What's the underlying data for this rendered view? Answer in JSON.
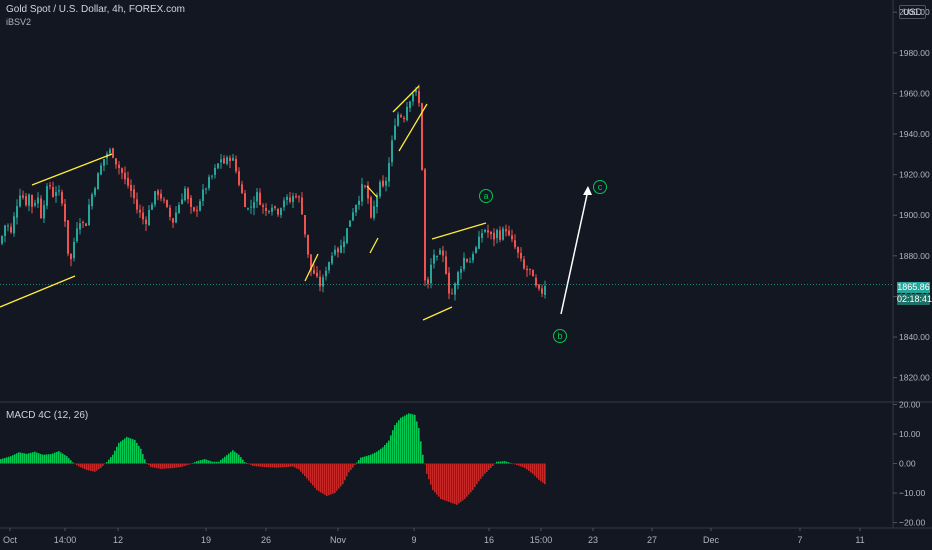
{
  "header": {
    "title": "Gold Spot / U.S. Dollar, 4h, FOREX.com",
    "indicator": "iBSV2",
    "currency": "USD"
  },
  "price_tags": {
    "last": "1865.86",
    "timer": "02:18:41"
  },
  "wave_labels": [
    "a",
    "b",
    "c"
  ],
  "colors": {
    "background": "#131722",
    "up": "#26a69a",
    "down": "#ef5350",
    "annotation": "#ffeb3b",
    "wave": "#00c853",
    "hist_pos": "#00c853",
    "hist_neg": "#c62828"
  },
  "chart_data": [
    {
      "type": "candlestick",
      "title": "Gold Spot / U.S. Dollar, 4h, FOREX.com",
      "currency": "USD",
      "x_ticks": [
        "Oct",
        "14:00",
        "12",
        "19",
        "26",
        "Nov",
        "9",
        "16",
        "15:00",
        "23",
        "27",
        "Dec",
        "7",
        "11"
      ],
      "y_ticks": [
        1820,
        1840,
        1860,
        1880,
        1900,
        1920,
        1940,
        1960,
        1980,
        2000
      ],
      "ylim": [
        1808,
        2006
      ],
      "last_price": 1865.86,
      "close_path": [
        [
          0,
          1888
        ],
        [
          5,
          1897
        ],
        [
          10,
          1891
        ],
        [
          15,
          1904
        ],
        [
          20,
          1913
        ],
        [
          24,
          1905
        ],
        [
          28,
          1910
        ],
        [
          32,
          1903
        ],
        [
          36,
          1911
        ],
        [
          40,
          1900
        ],
        [
          44,
          1909
        ],
        [
          48,
          1916
        ],
        [
          52,
          1910
        ],
        [
          56,
          1913
        ],
        [
          60,
          1908
        ],
        [
          64,
          1898
        ],
        [
          67,
          1882
        ],
        [
          70,
          1878
        ],
        [
          73,
          1887
        ],
        [
          76,
          1895
        ],
        [
          80,
          1899
        ],
        [
          84,
          1893
        ],
        [
          88,
          1905
        ],
        [
          92,
          1912
        ],
        [
          96,
          1918
        ],
        [
          100,
          1924
        ],
        [
          104,
          1929
        ],
        [
          108,
          1932
        ],
        [
          112,
          1930
        ],
        [
          116,
          1925
        ],
        [
          120,
          1922
        ],
        [
          124,
          1917
        ],
        [
          128,
          1914
        ],
        [
          132,
          1910
        ],
        [
          136,
          1903
        ],
        [
          140,
          1900
        ],
        [
          144,
          1896
        ],
        [
          148,
          1902
        ],
        [
          152,
          1908
        ],
        [
          156,
          1912
        ],
        [
          160,
          1909
        ],
        [
          164,
          1905
        ],
        [
          168,
          1900
        ],
        [
          172,
          1897
        ],
        [
          176,
          1903
        ],
        [
          180,
          1908
        ],
        [
          184,
          1913
        ],
        [
          188,
          1905
        ],
        [
          192,
          1900
        ],
        [
          196,
          1904
        ],
        [
          200,
          1909
        ],
        [
          204,
          1913
        ],
        [
          208,
          1917
        ],
        [
          212,
          1920
        ],
        [
          216,
          1924
        ],
        [
          220,
          1928
        ],
        [
          224,
          1925
        ],
        [
          228,
          1929
        ],
        [
          232,
          1927
        ],
        [
          236,
          1920
        ],
        [
          240,
          1912
        ],
        [
          244,
          1906
        ],
        [
          248,
          1902
        ],
        [
          252,
          1907
        ],
        [
          256,
          1910
        ],
        [
          260,
          1906
        ],
        [
          264,
          1901
        ],
        [
          268,
          1904
        ],
        [
          272,
          1906
        ],
        [
          276,
          1901
        ],
        [
          280,
          1905
        ],
        [
          284,
          1909
        ],
        [
          288,
          1906
        ],
        [
          292,
          1909
        ],
        [
          296,
          1911
        ],
        [
          299,
          1906
        ],
        [
          302,
          1900
        ],
        [
          306,
          1882
        ],
        [
          310,
          1873
        ],
        [
          314,
          1871
        ],
        [
          318,
          1865
        ],
        [
          322,
          1868
        ],
        [
          326,
          1876
        ],
        [
          330,
          1879
        ],
        [
          334,
          1885
        ],
        [
          338,
          1882
        ],
        [
          342,
          1887
        ],
        [
          346,
          1893
        ],
        [
          350,
          1900
        ],
        [
          354,
          1905
        ],
        [
          358,
          1909
        ],
        [
          362,
          1915
        ],
        [
          366,
          1912
        ],
        [
          370,
          1897
        ],
        [
          374,
          1906
        ],
        [
          378,
          1915
        ],
        [
          382,
          1913
        ],
        [
          386,
          1919
        ],
        [
          390,
          1932
        ],
        [
          394,
          1946
        ],
        [
          398,
          1951
        ],
        [
          402,
          1947
        ],
        [
          406,
          1954
        ],
        [
          410,
          1959
        ],
        [
          414,
          1962
        ],
        [
          417,
          1957
        ],
        [
          420,
          1950
        ],
        [
          423,
          1870
        ],
        [
          426,
          1862
        ],
        [
          429,
          1872
        ],
        [
          432,
          1882
        ],
        [
          436,
          1878
        ],
        [
          440,
          1882
        ],
        [
          444,
          1876
        ],
        [
          448,
          1863
        ],
        [
          452,
          1861
        ],
        [
          456,
          1870
        ],
        [
          460,
          1875
        ],
        [
          464,
          1880
        ],
        [
          468,
          1876
        ],
        [
          472,
          1882
        ],
        [
          476,
          1884
        ],
        [
          480,
          1891
        ],
        [
          484,
          1893
        ],
        [
          488,
          1891
        ],
        [
          492,
          1888
        ],
        [
          496,
          1892
        ],
        [
          500,
          1889
        ],
        [
          504,
          1895
        ],
        [
          508,
          1889
        ],
        [
          512,
          1886
        ],
        [
          516,
          1882
        ],
        [
          520,
          1877
        ],
        [
          524,
          1872
        ],
        [
          528,
          1874
        ],
        [
          532,
          1868
        ],
        [
          536,
          1863
        ],
        [
          540,
          1861
        ],
        [
          544,
          1866
        ]
      ]
    },
    {
      "type": "bar",
      "title": "MACD 4C (12, 26)",
      "y_ticks": [
        -20,
        -10,
        0,
        10,
        20
      ],
      "ylim": [
        -21.5,
        20.5
      ],
      "histogram_path": [
        [
          0,
          1.5
        ],
        [
          10,
          2.5
        ],
        [
          18,
          3.8
        ],
        [
          26,
          3.3
        ],
        [
          34,
          4
        ],
        [
          42,
          3
        ],
        [
          50,
          3.2
        ],
        [
          58,
          4.2
        ],
        [
          66,
          2.5
        ],
        [
          72,
          0.4
        ],
        [
          78,
          -1
        ],
        [
          86,
          -2.2
        ],
        [
          94,
          -2.8
        ],
        [
          100,
          -1.5
        ],
        [
          106,
          0.5
        ],
        [
          112,
          3
        ],
        [
          118,
          7
        ],
        [
          126,
          9
        ],
        [
          134,
          8
        ],
        [
          140,
          5
        ],
        [
          145,
          0.5
        ],
        [
          150,
          -1.2
        ],
        [
          160,
          -1.8
        ],
        [
          170,
          -1.6
        ],
        [
          180,
          -1.2
        ],
        [
          188,
          -0.4
        ],
        [
          196,
          0.8
        ],
        [
          204,
          1.5
        ],
        [
          212,
          0.6
        ],
        [
          218,
          0.6
        ],
        [
          224,
          2.3
        ],
        [
          232,
          4.5
        ],
        [
          238,
          3
        ],
        [
          244,
          0.5
        ],
        [
          252,
          -0.8
        ],
        [
          264,
          -1.2
        ],
        [
          276,
          -1.4
        ],
        [
          286,
          -1.2
        ],
        [
          292,
          -1
        ],
        [
          298,
          -2
        ],
        [
          306,
          -5
        ],
        [
          316,
          -9
        ],
        [
          326,
          -11
        ],
        [
          334,
          -10
        ],
        [
          342,
          -7
        ],
        [
          348,
          -3
        ],
        [
          354,
          -0.5
        ],
        [
          360,
          2
        ],
        [
          370,
          3
        ],
        [
          376,
          4
        ],
        [
          382,
          5.5
        ],
        [
          388,
          7.8
        ],
        [
          394,
          13
        ],
        [
          400,
          15.5
        ],
        [
          408,
          17
        ],
        [
          414,
          16.5
        ],
        [
          418,
          12
        ],
        [
          422,
          3
        ],
        [
          426,
          -3.5
        ],
        [
          432,
          -9
        ],
        [
          440,
          -12
        ],
        [
          448,
          -13
        ],
        [
          456,
          -14
        ],
        [
          464,
          -12
        ],
        [
          472,
          -9
        ],
        [
          478,
          -6
        ],
        [
          484,
          -3.5
        ],
        [
          490,
          -1.5
        ],
        [
          496,
          0.6
        ],
        [
          504,
          0.8
        ],
        [
          510,
          0.2
        ],
        [
          516,
          -0.5
        ],
        [
          524,
          -1.5
        ],
        [
          532,
          -3.5
        ],
        [
          538,
          -5.5
        ],
        [
          544,
          -7
        ]
      ]
    }
  ]
}
